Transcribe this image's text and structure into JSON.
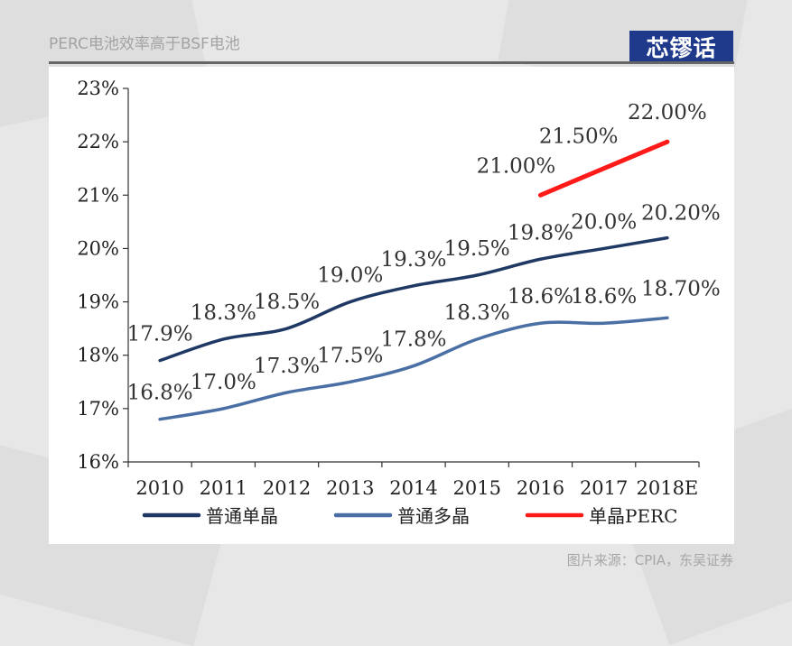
{
  "slide": {
    "title": "PERC电池效率高于BSF电池",
    "logo_text": "芯镠话",
    "source": "图片来源：CPIA，东吴证券"
  },
  "chart_data": {
    "type": "line",
    "title": "",
    "xlabel": "",
    "ylabel": "",
    "categories": [
      "2010",
      "2011",
      "2012",
      "2013",
      "2014",
      "2015",
      "2016",
      "2017",
      "2018E"
    ],
    "ylim": [
      16,
      23
    ],
    "yticks": [
      16,
      17,
      18,
      19,
      20,
      21,
      22,
      23
    ],
    "ytick_labels": [
      "16%",
      "17%",
      "18%",
      "19%",
      "20%",
      "21%",
      "22%",
      "23%"
    ],
    "grid": false,
    "legend_position": "bottom",
    "series": [
      {
        "name": "普通单晶",
        "color": "#1f3864",
        "values": [
          17.9,
          18.3,
          18.5,
          19.0,
          19.3,
          19.5,
          19.8,
          20.0,
          20.2
        ],
        "labels": [
          "17.9%",
          "18.3%",
          "18.5%",
          "19.0%",
          "19.3%",
          "19.5%",
          "19.8%",
          "20.0%",
          "20.20%"
        ]
      },
      {
        "name": "普通多晶",
        "color": "#4a6fa5",
        "values": [
          16.8,
          17.0,
          17.3,
          17.5,
          17.8,
          18.3,
          18.6,
          18.6,
          18.7
        ],
        "labels": [
          "16.8%",
          "17.0%",
          "17.3%",
          "17.5%",
          "17.8%",
          "18.3%",
          "18.6%",
          "18.6%",
          "18.70%"
        ]
      },
      {
        "name": "单晶PERC",
        "color": "#ff1a1a",
        "values": [
          null,
          null,
          null,
          null,
          null,
          null,
          21.0,
          21.5,
          22.0
        ],
        "labels": [
          null,
          null,
          null,
          null,
          null,
          null,
          "21.00%",
          "21.50%",
          "22.00%"
        ]
      }
    ]
  }
}
